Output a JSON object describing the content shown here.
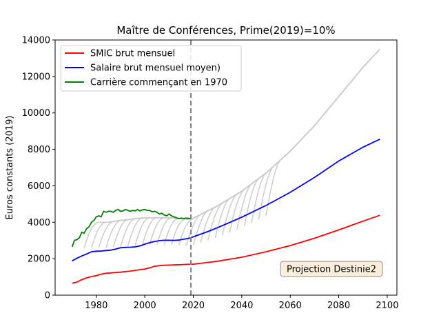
{
  "chart_data": {
    "type": "line",
    "title": "Maître de Conférences, Prime(2019)=10%",
    "xlabel": "",
    "ylabel": "Euros constants (2019)",
    "xlim": [
      1963,
      2104
    ],
    "ylim": [
      0,
      14000
    ],
    "xticks": [
      1980,
      2000,
      2020,
      2040,
      2060,
      2080,
      2100
    ],
    "yticks": [
      0,
      2000,
      4000,
      6000,
      8000,
      10000,
      12000,
      14000
    ],
    "grid": false,
    "legend_position": "upper-left",
    "vline": {
      "x": 2019,
      "style": "dashed",
      "color": "#808080"
    },
    "annotation": {
      "text": "Projection Destinie2",
      "x": 2068,
      "y": 1400,
      "facecolor": "#fbeedb",
      "edgecolor": "#888888"
    },
    "series": [
      {
        "name": "SMIC brut mensuel",
        "color": "#ff0000",
        "x": [
          1970,
          1972,
          1974,
          1976,
          1978,
          1980,
          1982,
          1984,
          1986,
          1988,
          1990,
          1992,
          1994,
          1996,
          1998,
          2000,
          2002,
          2004,
          2006,
          2008,
          2010,
          2012,
          2014,
          2016,
          2018,
          2019,
          2020,
          2025,
          2030,
          2040,
          2050,
          2060,
          2070,
          2080,
          2090,
          2097
        ],
        "y": [
          650,
          720,
          850,
          950,
          1020,
          1070,
          1150,
          1200,
          1220,
          1240,
          1260,
          1290,
          1320,
          1360,
          1400,
          1430,
          1500,
          1580,
          1620,
          1640,
          1650,
          1660,
          1670,
          1680,
          1690,
          1700,
          1700,
          1780,
          1860,
          2080,
          2380,
          2720,
          3120,
          3580,
          4060,
          4380
        ]
      },
      {
        "name": "Salaire brut mensuel moyen)",
        "color": "#0000ff",
        "x": [
          1970,
          1972,
          1974,
          1976,
          1978,
          1980,
          1982,
          1984,
          1986,
          1988,
          1990,
          1992,
          1994,
          1996,
          1998,
          2000,
          2002,
          2004,
          2006,
          2008,
          2010,
          2012,
          2014,
          2016,
          2018,
          2019,
          2020,
          2025,
          2030,
          2040,
          2050,
          2060,
          2070,
          2080,
          2090,
          2097
        ],
        "y": [
          1880,
          2030,
          2150,
          2260,
          2380,
          2410,
          2420,
          2450,
          2470,
          2530,
          2600,
          2620,
          2630,
          2650,
          2700,
          2800,
          2880,
          2940,
          2990,
          3010,
          3010,
          3000,
          3020,
          3070,
          3110,
          3150,
          3200,
          3440,
          3700,
          4280,
          4920,
          5640,
          6460,
          7360,
          8120,
          8560
        ]
      },
      {
        "name": "Carrière commençant en 1970",
        "color": "#008000",
        "x": [
          1970,
          1971,
          1972,
          1973,
          1974,
          1975,
          1976,
          1977,
          1978,
          1979,
          1980,
          1981,
          1982,
          1983,
          1984,
          1985,
          1986,
          1987,
          1988,
          1989,
          1990,
          1991,
          1992,
          1993,
          1994,
          1995,
          1996,
          1997,
          1998,
          1999,
          2000,
          2001,
          2002,
          2003,
          2004,
          2005,
          2006,
          2007,
          2008,
          2009,
          2010,
          2011,
          2012,
          2013,
          2014,
          2015,
          2016,
          2017,
          2018,
          2019
        ],
        "y": [
          2650,
          3000,
          3050,
          3150,
          3450,
          3400,
          3650,
          3750,
          4000,
          4100,
          4300,
          4350,
          4300,
          4600,
          4550,
          4600,
          4600,
          4550,
          4650,
          4700,
          4600,
          4620,
          4700,
          4650,
          4600,
          4650,
          4620,
          4700,
          4620,
          4680,
          4700,
          4650,
          4650,
          4580,
          4600,
          4550,
          4450,
          4500,
          4400,
          4350,
          4450,
          4350,
          4300,
          4250,
          4200,
          4230,
          4200,
          4230,
          4220,
          4200
        ]
      }
    ],
    "grey_careers": {
      "color": "#cccccc",
      "offsets_start_years": [
        1975,
        1978,
        1981,
        1984,
        1987,
        1990,
        1993,
        1996,
        1999,
        2002,
        2005,
        2008,
        2011,
        2014,
        2017,
        2020,
        2023,
        2026,
        2029,
        2032,
        2035,
        2038,
        2041,
        2044,
        2047,
        2050
      ],
      "career_length_years": 20,
      "envelope_x": [
        1985,
        1990,
        2000,
        2010,
        2019,
        2030,
        2040,
        2050,
        2060,
        2070,
        2080,
        2090,
        2097
      ],
      "envelope_y": [
        4000,
        4100,
        4250,
        4250,
        4150,
        4900,
        5700,
        6700,
        7900,
        9300,
        10900,
        12500,
        13500
      ]
    }
  }
}
